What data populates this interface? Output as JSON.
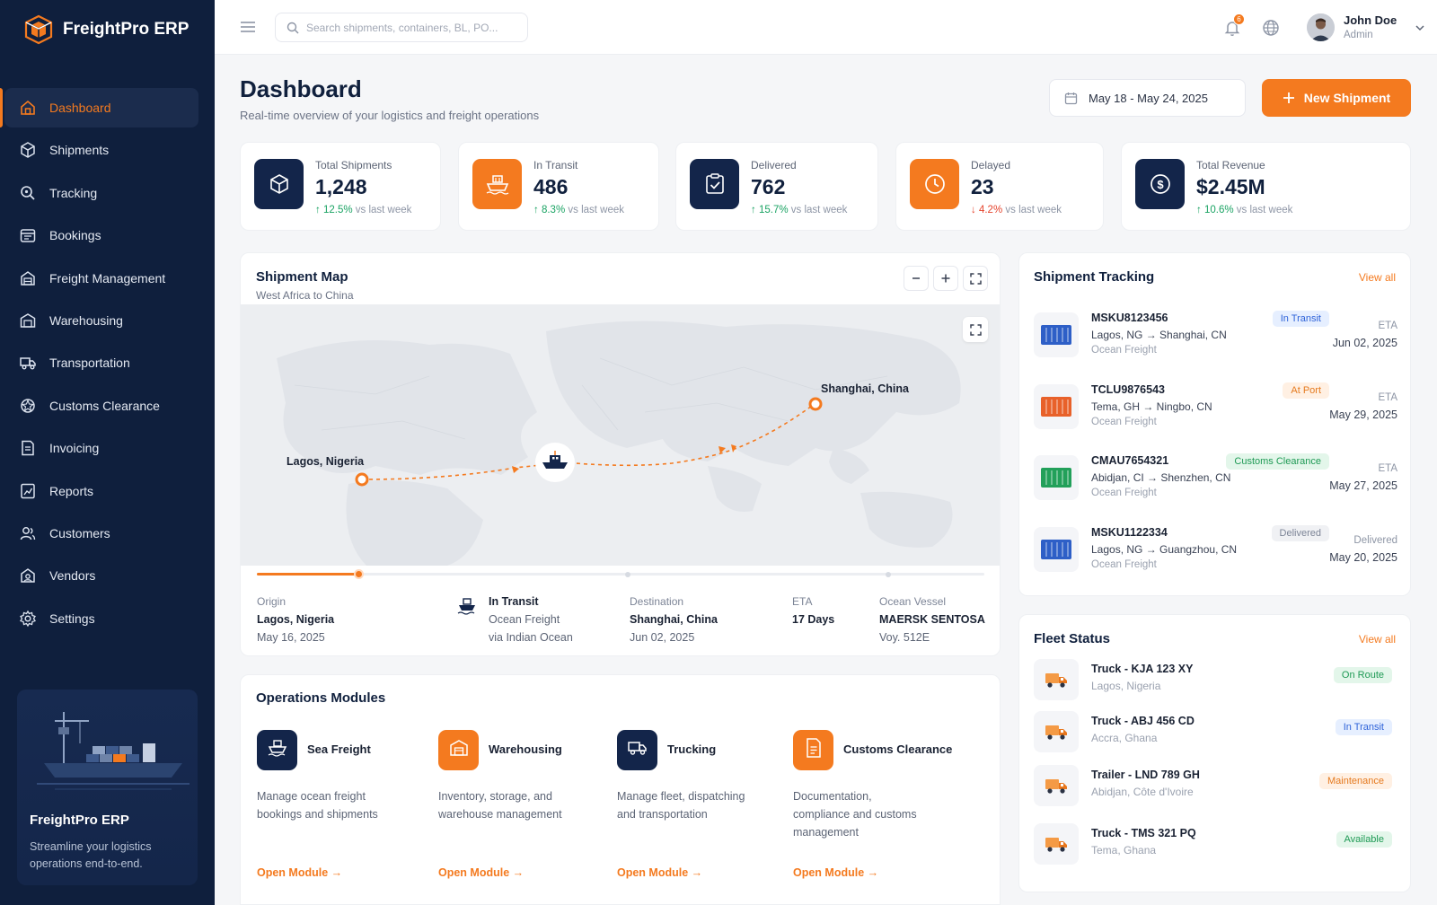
{
  "app": {
    "name": "FreightPro ERP"
  },
  "sidebar": {
    "items": [
      {
        "label": "Dashboard",
        "icon": "home-icon",
        "active": true
      },
      {
        "label": "Shipments",
        "icon": "box-icon"
      },
      {
        "label": "Tracking",
        "icon": "search-location-icon"
      },
      {
        "label": "Bookings",
        "icon": "calendar-icon"
      },
      {
        "label": "Freight Management",
        "icon": "freight-icon"
      },
      {
        "label": "Warehousing",
        "icon": "warehouse-icon"
      },
      {
        "label": "Transportation",
        "icon": "truck-icon"
      },
      {
        "label": "Customs Clearance",
        "icon": "customs-icon"
      },
      {
        "label": "Invoicing",
        "icon": "invoice-icon"
      },
      {
        "label": "Reports",
        "icon": "report-icon"
      },
      {
        "label": "Customers",
        "icon": "users-icon"
      },
      {
        "label": "Vendors",
        "icon": "vendors-icon"
      },
      {
        "label": "Settings",
        "icon": "gear-icon"
      }
    ],
    "promo": {
      "title": "FreightPro ERP",
      "text": "Streamline your logistics operations end-to-end."
    }
  },
  "header": {
    "search_placeholder": "Search shipments, containers, BL, PO...",
    "notification_count": "6",
    "user_name": "John Doe",
    "user_role": "Admin"
  },
  "page": {
    "title": "Dashboard",
    "subtitle": "Real-time overview of your logistics and freight operations",
    "date_range": "May 18 - May 24, 2025",
    "new_button": "New Shipment"
  },
  "stats": [
    {
      "label": "Total Shipments",
      "value": "1,248",
      "trend": "12.5%",
      "direction": "up",
      "suffix": "vs last week",
      "icon": "box-icon",
      "color": "#13254a"
    },
    {
      "label": "In Transit",
      "value": "486",
      "trend": "8.3%",
      "direction": "up",
      "suffix": "vs last week",
      "icon": "ship-icon",
      "color": "#f47a1f"
    },
    {
      "label": "Delivered",
      "value": "762",
      "trend": "15.7%",
      "direction": "up",
      "suffix": "vs last week",
      "icon": "clipboard-check-icon",
      "color": "#13254a"
    },
    {
      "label": "Delayed",
      "value": "23",
      "trend": "4.2%",
      "direction": "down",
      "suffix": "vs last week",
      "icon": "clock-icon",
      "color": "#f47a1f"
    },
    {
      "label": "Total Revenue",
      "value": "$2.45M",
      "trend": "10.6%",
      "direction": "up",
      "suffix": "vs last week",
      "icon": "dollar-icon",
      "color": "#13254a"
    }
  ],
  "map": {
    "title": "Shipment Map",
    "subtitle": "West Africa to China",
    "origin_label": "Lagos, Nigeria",
    "destination_label": "Shanghai, China",
    "progress": 0.14,
    "info": {
      "origin_lbl": "Origin",
      "origin_val": "Lagos, Nigeria",
      "origin_date": "May 16, 2025",
      "status_val": "In Transit",
      "status_sub1": "Ocean Freight",
      "status_sub2": "via Indian Ocean",
      "dest_lbl": "Destination",
      "dest_val": "Shanghai, China",
      "dest_date": "Jun 02, 2025",
      "eta_lbl": "ETA",
      "eta_val": "17 Days",
      "vessel_lbl": "Ocean Vessel",
      "vessel_val": "MAERSK SENTOSA",
      "vessel_voy": "Voy. 512E"
    }
  },
  "tracking": {
    "title": "Shipment Tracking",
    "view_all": "View all",
    "rows": [
      {
        "id": "MSKU8123456",
        "route": "Lagos, NG → Shanghai, CN",
        "mode": "Ocean Freight",
        "status": "In Transit",
        "status_color": "blue",
        "eta_label": "ETA",
        "eta": "Jun 02, 2025",
        "container_color": "#2e5fc7"
      },
      {
        "id": "TCLU9876543",
        "route": "Tema, GH → Ningbo, CN",
        "mode": "Ocean Freight",
        "status": "At Port",
        "status_color": "orange",
        "eta_label": "ETA",
        "eta": "May 29, 2025",
        "container_color": "#e8612a"
      },
      {
        "id": "CMAU7654321",
        "route": "Abidjan, CI → Shenzhen, CN",
        "mode": "Ocean Freight",
        "status": "Customs Clearance",
        "status_color": "green",
        "eta_label": "ETA",
        "eta": "May 27, 2025",
        "container_color": "#22a05a"
      },
      {
        "id": "MSKU1122334",
        "route": "Lagos, NG → Guangzhou, CN",
        "mode": "Ocean Freight",
        "status": "Delivered",
        "status_color": "gray",
        "eta_label": "Delivered",
        "eta": "May 20, 2025",
        "container_color": "#2e5fc7"
      }
    ]
  },
  "fleet": {
    "title": "Fleet Status",
    "view_all": "View all",
    "rows": [
      {
        "name": "Truck - KJA 123 XY",
        "location": "Lagos, Nigeria",
        "status": "On Route",
        "status_color": "green"
      },
      {
        "name": "Truck - ABJ 456 CD",
        "location": "Accra, Ghana",
        "status": "In Transit",
        "status_color": "blue"
      },
      {
        "name": "Trailer - LND 789 GH",
        "location": "Abidjan, Côte d'Ivoire",
        "status": "Maintenance",
        "status_color": "orange"
      },
      {
        "name": "Truck - TMS 321 PQ",
        "location": "Tema, Ghana",
        "status": "Available",
        "status_color": "green"
      }
    ]
  },
  "operations": {
    "title": "Operations Modules",
    "modules": [
      {
        "name": "Sea Freight",
        "desc": "Manage ocean freight bookings and shipments",
        "link": "Open Module →",
        "icon": "ship-icon",
        "color": "#13254a"
      },
      {
        "name": "Warehousing",
        "desc": "Inventory, storage, and warehouse management",
        "link": "Open Module →",
        "icon": "warehouse-icon",
        "color": "#f47a1f"
      },
      {
        "name": "Trucking",
        "desc": "Manage fleet, dispatching and transportation",
        "link": "Open Module →",
        "icon": "truck-icon",
        "color": "#13254a"
      },
      {
        "name": "Customs Clearance",
        "desc": "Documentation, compliance and customs management",
        "link": "Open Module →",
        "icon": "document-icon",
        "color": "#f47a1f"
      }
    ]
  }
}
